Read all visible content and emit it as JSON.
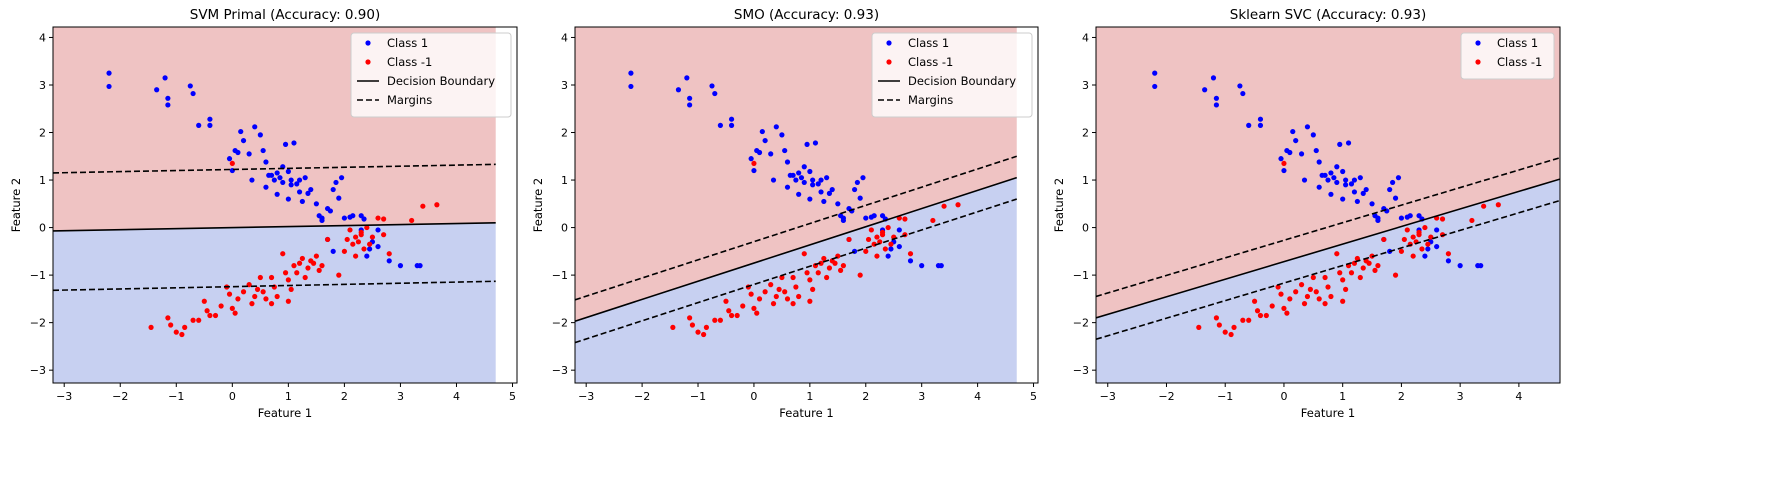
{
  "chart_data": [
    {
      "type": "scatter",
      "title": "SVM Primal (Accuracy: 0.90)",
      "xlabel": "Feature 1",
      "ylabel": "Feature 2",
      "xlim": [
        -3.2,
        5.08
      ],
      "ylim": [
        -3.27,
        4.22
      ],
      "region_xlim": [
        -3.2,
        4.7
      ],
      "xticks": [
        -3,
        -2,
        -1,
        0,
        1,
        2,
        3,
        4,
        5
      ],
      "yticks": [
        -3,
        -2,
        -1,
        0,
        1,
        2,
        3,
        4
      ],
      "boundary": [
        [
          -3.2,
          -0.07
        ],
        [
          4.7,
          0.1
        ]
      ],
      "margins": [
        [
          [
            -3.2,
            1.15
          ],
          [
            4.7,
            1.33
          ]
        ],
        [
          [
            -3.2,
            -1.32
          ],
          [
            4.7,
            -1.13
          ]
        ]
      ],
      "legend": [
        "Class 1",
        "Class -1",
        "Decision Boundary",
        "Margins"
      ],
      "legend_position": "upper right"
    },
    {
      "type": "scatter",
      "title": "SMO (Accuracy: 0.93)",
      "xlabel": "Feature 1",
      "ylabel": "Feature 2",
      "xlim": [
        -3.2,
        5.08
      ],
      "ylim": [
        -3.27,
        4.22
      ],
      "region_xlim": [
        -3.2,
        4.7
      ],
      "xticks": [
        -3,
        -2,
        -1,
        0,
        1,
        2,
        3,
        4,
        5
      ],
      "yticks": [
        -3,
        -2,
        -1,
        0,
        1,
        2,
        3,
        4
      ],
      "boundary": [
        [
          -3.2,
          -1.97
        ],
        [
          4.7,
          1.05
        ]
      ],
      "margins": [
        [
          [
            -3.2,
            -1.52
          ],
          [
            4.7,
            1.5
          ]
        ],
        [
          [
            -3.2,
            -2.42
          ],
          [
            4.7,
            0.6
          ]
        ]
      ],
      "legend": [
        "Class 1",
        "Class -1",
        "Decision Boundary",
        "Margins"
      ],
      "legend_position": "upper right"
    },
    {
      "type": "scatter",
      "title": "Sklearn SVC (Accuracy: 0.93)",
      "xlabel": "Feature 1",
      "ylabel": "Feature 2",
      "xlim": [
        -3.2,
        4.7
      ],
      "ylim": [
        -3.27,
        4.22
      ],
      "region_xlim": [
        -3.2,
        4.7
      ],
      "xticks": [
        -3,
        -2,
        -1,
        0,
        1,
        2,
        3,
        4
      ],
      "yticks": [
        -3,
        -2,
        -1,
        0,
        1,
        2,
        3,
        4
      ],
      "boundary": [
        [
          -3.2,
          -1.9
        ],
        [
          4.7,
          1.02
        ]
      ],
      "margins": [
        [
          [
            -3.2,
            -1.45
          ],
          [
            4.7,
            1.47
          ]
        ],
        [
          [
            -3.2,
            -2.35
          ],
          [
            4.7,
            0.57
          ]
        ]
      ],
      "legend": [
        "Class 1",
        "Class -1"
      ],
      "legend_position": "upper right"
    }
  ],
  "series": [
    {
      "name": "Class 1",
      "color": "#0000ff",
      "points": [
        [
          -2.2,
          3.25
        ],
        [
          -2.2,
          2.97
        ],
        [
          -1.35,
          2.9
        ],
        [
          -1.2,
          3.15
        ],
        [
          -1.15,
          2.72
        ],
        [
          -1.15,
          2.58
        ],
        [
          -0.75,
          2.98
        ],
        [
          -0.7,
          2.82
        ],
        [
          -0.6,
          2.15
        ],
        [
          -0.4,
          2.28
        ],
        [
          -0.4,
          2.15
        ],
        [
          0.05,
          1.62
        ],
        [
          0.1,
          1.58
        ],
        [
          0.15,
          2.02
        ],
        [
          0.2,
          1.83
        ],
        [
          -0.05,
          1.45
        ],
        [
          0.0,
          1.2
        ],
        [
          0.3,
          1.55
        ],
        [
          0.4,
          2.12
        ],
        [
          0.5,
          1.95
        ],
        [
          0.6,
          1.38
        ],
        [
          0.55,
          1.62
        ],
        [
          0.7,
          1.1
        ],
        [
          0.8,
          1.15
        ],
        [
          0.85,
          1.05
        ],
        [
          0.9,
          1.28
        ],
        [
          0.95,
          1.75
        ],
        [
          0.9,
          0.95
        ],
        [
          1.0,
          1.18
        ],
        [
          1.05,
          1.0
        ],
        [
          1.1,
          1.78
        ],
        [
          1.15,
          0.92
        ],
        [
          1.2,
          0.75
        ],
        [
          1.25,
          0.55
        ],
        [
          1.3,
          1.05
        ],
        [
          1.35,
          0.72
        ],
        [
          1.4,
          0.8
        ],
        [
          0.6,
          0.85
        ],
        [
          0.75,
          1.0
        ],
        [
          0.8,
          0.7
        ],
        [
          1.0,
          0.6
        ],
        [
          1.05,
          0.9
        ],
        [
          1.5,
          0.5
        ],
        [
          1.6,
          0.15
        ],
        [
          1.7,
          0.4
        ],
        [
          1.75,
          0.35
        ],
        [
          1.8,
          0.8
        ],
        [
          1.85,
          0.95
        ],
        [
          1.9,
          0.62
        ],
        [
          1.95,
          1.05
        ],
        [
          2.0,
          0.2
        ],
        [
          2.1,
          0.22
        ],
        [
          2.3,
          0.25
        ],
        [
          2.35,
          0.18
        ],
        [
          1.7,
          -0.25
        ],
        [
          1.8,
          -0.5
        ],
        [
          2.3,
          -0.05
        ],
        [
          2.45,
          -0.45
        ],
        [
          2.6,
          -0.4
        ],
        [
          2.6,
          -0.05
        ],
        [
          2.8,
          -0.7
        ],
        [
          3.0,
          -0.8
        ],
        [
          3.3,
          -0.8
        ],
        [
          3.35,
          -0.8
        ],
        [
          2.15,
          0.25
        ],
        [
          1.55,
          0.25
        ],
        [
          1.6,
          0.2
        ],
        [
          1.2,
          1.0
        ],
        [
          0.65,
          1.1
        ],
        [
          0.35,
          1.0
        ],
        [
          2.5,
          -0.3
        ],
        [
          2.4,
          -0.6
        ]
      ]
    },
    {
      "name": "Class -1",
      "color": "#ff0000",
      "points": [
        [
          -1.45,
          -2.1
        ],
        [
          -1.15,
          -1.9
        ],
        [
          -1.1,
          -2.05
        ],
        [
          -1.0,
          -2.2
        ],
        [
          -0.9,
          -2.25
        ],
        [
          -0.85,
          -2.1
        ],
        [
          -0.7,
          -1.95
        ],
        [
          -0.6,
          -1.95
        ],
        [
          -0.5,
          -1.55
        ],
        [
          -0.45,
          -1.75
        ],
        [
          -0.4,
          -1.85
        ],
        [
          -0.3,
          -1.85
        ],
        [
          -0.2,
          -1.65
        ],
        [
          -0.1,
          -1.25
        ],
        [
          -0.05,
          -1.4
        ],
        [
          0.0,
          -1.7
        ],
        [
          0.05,
          -1.8
        ],
        [
          0.1,
          -1.5
        ],
        [
          0.2,
          -1.35
        ],
        [
          0.3,
          -1.2
        ],
        [
          0.35,
          -1.6
        ],
        [
          0.45,
          -1.3
        ],
        [
          0.5,
          -1.05
        ],
        [
          0.55,
          -1.35
        ],
        [
          0.6,
          -1.5
        ],
        [
          0.7,
          -1.05
        ],
        [
          0.75,
          -1.25
        ],
        [
          0.8,
          -1.45
        ],
        [
          0.9,
          -0.55
        ],
        [
          0.95,
          -0.95
        ],
        [
          1.0,
          -1.1
        ],
        [
          1.05,
          -1.3
        ],
        [
          1.1,
          -0.8
        ],
        [
          1.15,
          -0.95
        ],
        [
          1.2,
          -0.75
        ],
        [
          1.25,
          -0.65
        ],
        [
          1.3,
          -1.05
        ],
        [
          1.35,
          -0.85
        ],
        [
          1.4,
          -0.7
        ],
        [
          1.45,
          -0.75
        ],
        [
          1.5,
          -0.6
        ],
        [
          1.55,
          -0.9
        ],
        [
          1.7,
          -0.25
        ],
        [
          1.9,
          -1.0
        ],
        [
          2.0,
          -0.5
        ],
        [
          2.05,
          -0.25
        ],
        [
          2.1,
          -0.05
        ],
        [
          2.15,
          -0.35
        ],
        [
          2.2,
          -0.6
        ],
        [
          2.25,
          -0.3
        ],
        [
          2.3,
          -0.15
        ],
        [
          2.35,
          -0.45
        ],
        [
          2.4,
          0.0
        ],
        [
          2.45,
          -0.35
        ],
        [
          2.5,
          -0.2
        ],
        [
          2.6,
          0.2
        ],
        [
          2.7,
          0.18
        ],
        [
          2.8,
          -0.55
        ],
        [
          3.2,
          0.15
        ],
        [
          3.4,
          0.45
        ],
        [
          3.65,
          0.48
        ],
        [
          2.3,
          -0.1
        ],
        [
          2.2,
          -0.2
        ],
        [
          0.0,
          1.35
        ],
        [
          0.7,
          -1.6
        ],
        [
          1.0,
          -1.55
        ],
        [
          0.4,
          -1.45
        ],
        [
          1.6,
          -0.8
        ],
        [
          2.7,
          -0.15
        ]
      ]
    }
  ],
  "colors": {
    "region_positive": "#efc3c3",
    "region_negative": "#c7d0f1",
    "boundary": "#000000"
  }
}
